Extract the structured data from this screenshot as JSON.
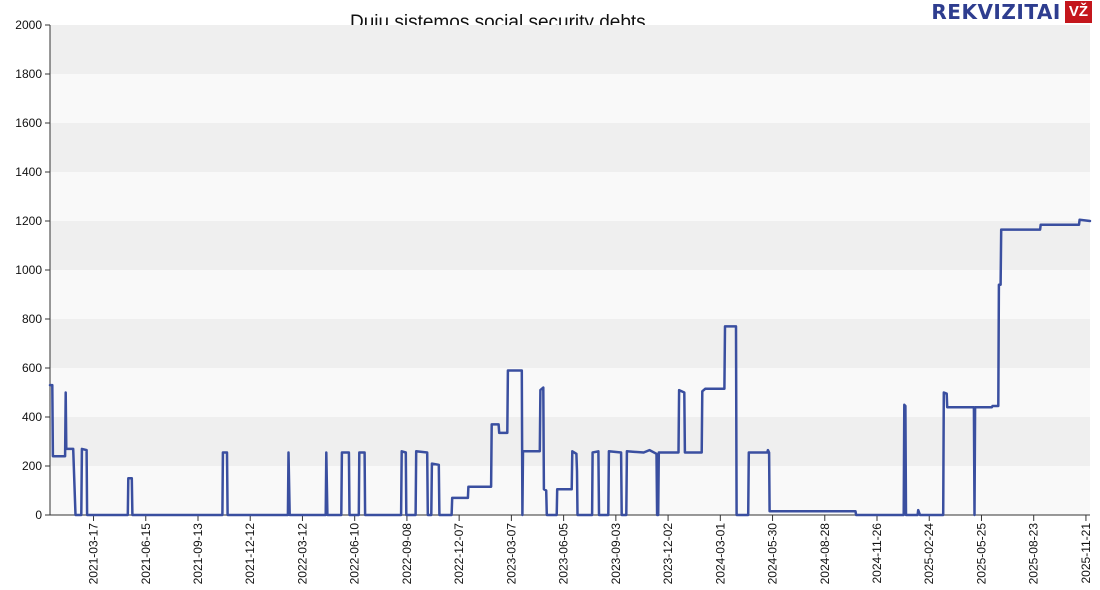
{
  "chart_data": {
    "type": "line",
    "title": "Dujų sistemos social security debts",
    "xlabel": "",
    "ylabel": "",
    "ylim": [
      0,
      2000
    ],
    "xlim": [
      "2021-01-01",
      "2025-11-28"
    ],
    "y_ticks": [
      0,
      200,
      400,
      600,
      800,
      1000,
      1200,
      1400,
      1600,
      1800,
      2000
    ],
    "x_ticks": [
      "2021-03-17",
      "2021-06-15",
      "2021-09-13",
      "2021-12-12",
      "2022-03-12",
      "2022-06-10",
      "2022-09-08",
      "2022-12-07",
      "2023-03-07",
      "2023-06-05",
      "2023-09-03",
      "2023-12-02",
      "2024-03-01",
      "2024-05-30",
      "2024-08-28",
      "2024-11-26",
      "2025-02-24",
      "2025-05-25",
      "2025-08-23",
      "2025-11-21"
    ],
    "grid": "horizontal bands",
    "line_color": "#3a4fa0",
    "series": [
      {
        "values": [
          [
            "2021-01-01",
            530
          ],
          [
            "2021-01-05",
            530
          ],
          [
            "2021-01-06",
            240
          ],
          [
            "2021-01-27",
            240
          ],
          [
            "2021-01-28",
            500
          ],
          [
            "2021-01-29",
            270
          ],
          [
            "2021-02-10",
            270
          ],
          [
            "2021-02-14",
            0
          ],
          [
            "2021-02-24",
            0
          ],
          [
            "2021-02-25",
            270
          ],
          [
            "2021-03-05",
            265
          ],
          [
            "2021-03-06",
            0
          ],
          [
            "2021-05-15",
            0
          ],
          [
            "2021-05-16",
            150
          ],
          [
            "2021-05-22",
            150
          ],
          [
            "2021-05-23",
            0
          ],
          [
            "2021-10-25",
            0
          ],
          [
            "2021-10-26",
            255
          ],
          [
            "2021-11-02",
            255
          ],
          [
            "2021-11-03",
            0
          ],
          [
            "2022-02-15",
            0
          ],
          [
            "2022-02-16",
            255
          ],
          [
            "2022-02-18",
            0
          ],
          [
            "2022-04-21",
            0
          ],
          [
            "2022-04-22",
            255
          ],
          [
            "2022-04-24",
            0
          ],
          [
            "2022-05-18",
            0
          ],
          [
            "2022-05-19",
            255
          ],
          [
            "2022-05-31",
            255
          ],
          [
            "2022-06-01",
            0
          ],
          [
            "2022-06-17",
            0
          ],
          [
            "2022-06-18",
            255
          ],
          [
            "2022-06-27",
            255
          ],
          [
            "2022-06-28",
            0
          ],
          [
            "2022-08-29",
            0
          ],
          [
            "2022-08-30",
            260
          ],
          [
            "2022-09-06",
            255
          ],
          [
            "2022-09-07",
            0
          ],
          [
            "2022-09-23",
            0
          ],
          [
            "2022-09-24",
            260
          ],
          [
            "2022-10-13",
            255
          ],
          [
            "2022-10-14",
            0
          ],
          [
            "2022-10-20",
            0
          ],
          [
            "2022-10-21",
            210
          ],
          [
            "2022-11-02",
            205
          ],
          [
            "2022-11-03",
            0
          ],
          [
            "2022-11-24",
            0
          ],
          [
            "2022-11-25",
            70
          ],
          [
            "2022-12-22",
            70
          ],
          [
            "2022-12-23",
            115
          ],
          [
            "2023-01-31",
            115
          ],
          [
            "2023-02-01",
            370
          ],
          [
            "2023-02-13",
            370
          ],
          [
            "2023-02-14",
            335
          ],
          [
            "2023-02-28",
            335
          ],
          [
            "2023-03-01",
            590
          ],
          [
            "2023-03-25",
            590
          ],
          [
            "2023-03-26",
            0
          ],
          [
            "2023-03-27",
            260
          ],
          [
            "2023-04-25",
            260
          ],
          [
            "2023-04-26",
            510
          ],
          [
            "2023-05-01",
            520
          ],
          [
            "2023-05-02",
            105
          ],
          [
            "2023-05-06",
            100
          ],
          [
            "2023-05-07",
            0
          ],
          [
            "2023-05-24",
            0
          ],
          [
            "2023-05-25",
            105
          ],
          [
            "2023-06-19",
            105
          ],
          [
            "2023-06-20",
            260
          ],
          [
            "2023-06-27",
            250
          ],
          [
            "2023-06-28",
            180
          ],
          [
            "2023-06-29",
            0
          ],
          [
            "2023-07-24",
            0
          ],
          [
            "2023-07-25",
            255
          ],
          [
            "2023-08-04",
            260
          ],
          [
            "2023-08-05",
            0
          ],
          [
            "2023-08-21",
            0
          ],
          [
            "2023-08-22",
            260
          ],
          [
            "2023-09-12",
            255
          ],
          [
            "2023-09-13",
            0
          ],
          [
            "2023-09-21",
            0
          ],
          [
            "2023-09-22",
            260
          ],
          [
            "2023-10-21",
            255
          ],
          [
            "2023-10-31",
            265
          ],
          [
            "2023-11-12",
            250
          ],
          [
            "2023-11-13",
            0
          ],
          [
            "2023-11-15",
            0
          ],
          [
            "2023-11-16",
            255
          ],
          [
            "2023-12-20",
            255
          ],
          [
            "2023-12-21",
            510
          ],
          [
            "2023-12-30",
            500
          ],
          [
            "2023-12-31",
            255
          ],
          [
            "2024-01-29",
            255
          ],
          [
            "2024-01-30",
            505
          ],
          [
            "2024-02-04",
            515
          ],
          [
            "2024-03-08",
            515
          ],
          [
            "2024-03-09",
            770
          ],
          [
            "2024-03-28",
            770
          ],
          [
            "2024-03-29",
            0
          ],
          [
            "2024-04-18",
            0
          ],
          [
            "2024-04-19",
            255
          ],
          [
            "2024-05-21",
            255
          ],
          [
            "2024-05-22",
            265
          ],
          [
            "2024-05-24",
            255
          ],
          [
            "2024-05-25",
            15
          ],
          [
            "2024-10-20",
            15
          ],
          [
            "2024-10-21",
            0
          ],
          [
            "2025-01-11",
            0
          ],
          [
            "2025-01-12",
            450
          ],
          [
            "2025-01-14",
            445
          ],
          [
            "2025-01-15",
            0
          ],
          [
            "2025-02-04",
            0
          ],
          [
            "2025-02-05",
            20
          ],
          [
            "2025-02-08",
            0
          ],
          [
            "2025-03-20",
            0
          ],
          [
            "2025-03-21",
            500
          ],
          [
            "2025-03-26",
            495
          ],
          [
            "2025-03-27",
            440
          ],
          [
            "2025-05-12",
            440
          ],
          [
            "2025-05-13",
            0
          ],
          [
            "2025-05-14",
            440
          ],
          [
            "2025-06-12",
            440
          ],
          [
            "2025-06-13",
            445
          ],
          [
            "2025-06-23",
            445
          ],
          [
            "2025-06-24",
            940
          ],
          [
            "2025-06-27",
            940
          ],
          [
            "2025-06-28",
            1165
          ],
          [
            "2025-09-03",
            1165
          ],
          [
            "2025-09-04",
            1185
          ],
          [
            "2025-11-09",
            1185
          ],
          [
            "2025-11-10",
            1205
          ],
          [
            "2025-11-28",
            1200
          ]
        ]
      }
    ]
  },
  "brand": {
    "name": "REKVIZITAI",
    "badge": "VŽ"
  }
}
